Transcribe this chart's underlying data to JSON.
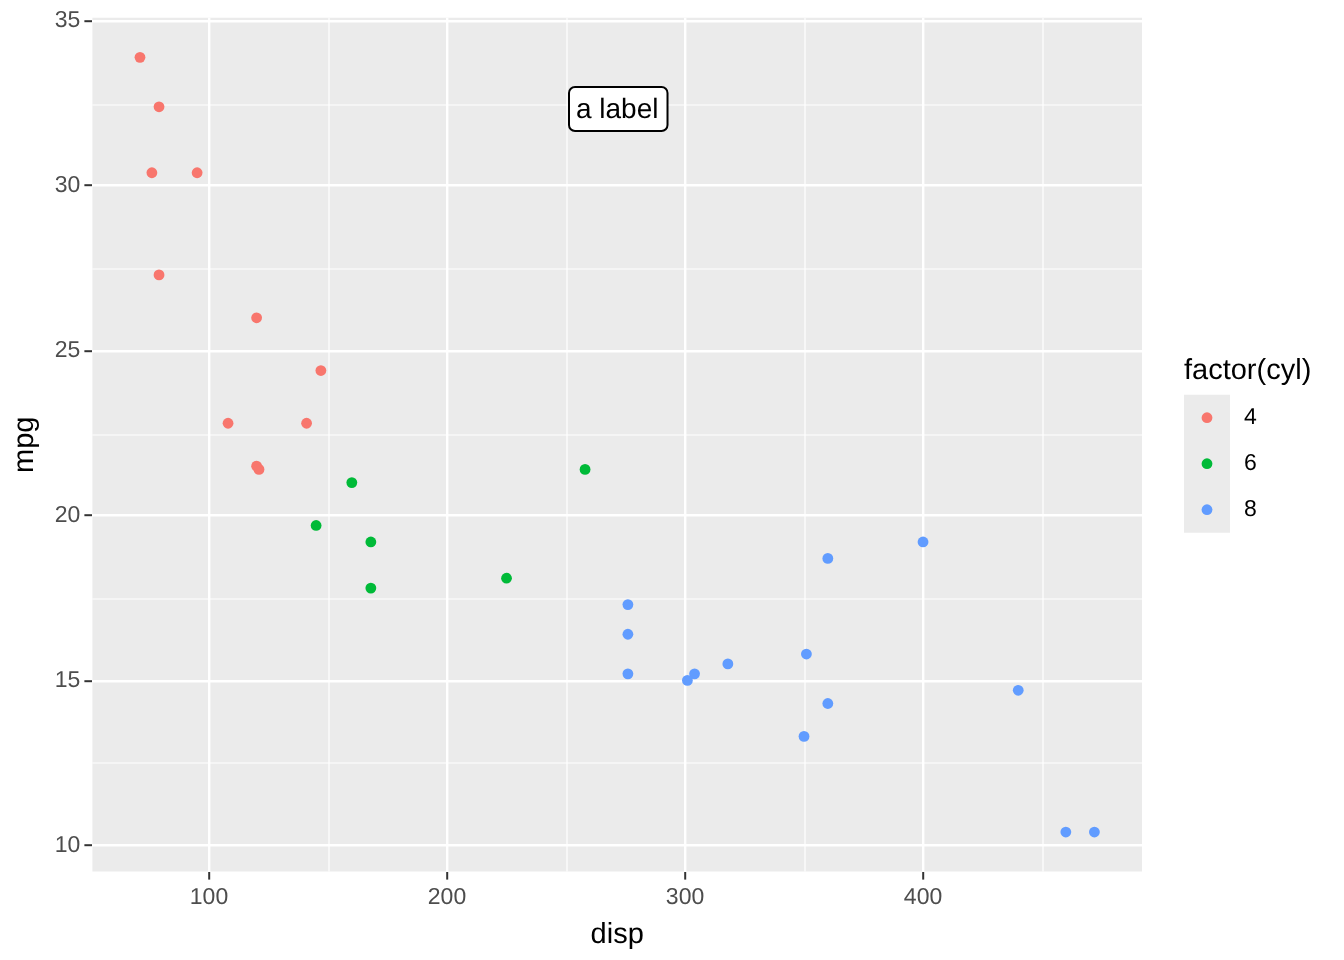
{
  "chart_data": {
    "type": "scatter",
    "xlabel": "disp",
    "ylabel": "mpg",
    "legend_title": "factor(cyl)",
    "legend": "right",
    "marker": "circle",
    "grid": true,
    "xlim": [
      51,
      492
    ],
    "ylim": [
      9.2,
      35.1
    ],
    "xticks": [
      100,
      200,
      300,
      400
    ],
    "yticks": [
      10,
      15,
      20,
      25,
      30,
      35
    ],
    "series": [
      {
        "name": "4",
        "color": "#f8766d",
        "x": [
          108,
          147,
          141,
          79,
          76,
          71,
          120,
          79,
          120,
          95,
          121
        ],
        "values": [
          22.8,
          24.4,
          22.8,
          32.4,
          30.4,
          33.9,
          21.5,
          27.3,
          26.0,
          30.4,
          21.4
        ]
      },
      {
        "name": "6",
        "color": "#00ba38",
        "x": [
          160,
          258,
          225,
          168,
          168,
          145
        ],
        "values": [
          21.0,
          21.4,
          18.1,
          19.2,
          17.8,
          19.7
        ]
      },
      {
        "name": "8",
        "color": "#619cff",
        "x": [
          360,
          360,
          276,
          276,
          276,
          472,
          460,
          440,
          318,
          304,
          350,
          400,
          351,
          301
        ],
        "values": [
          18.7,
          14.3,
          16.4,
          17.3,
          15.2,
          10.4,
          10.4,
          14.7,
          15.5,
          15.2,
          13.3,
          19.2,
          15.8,
          15.0
        ]
      }
    ],
    "annotations": [
      "a label"
    ]
  }
}
